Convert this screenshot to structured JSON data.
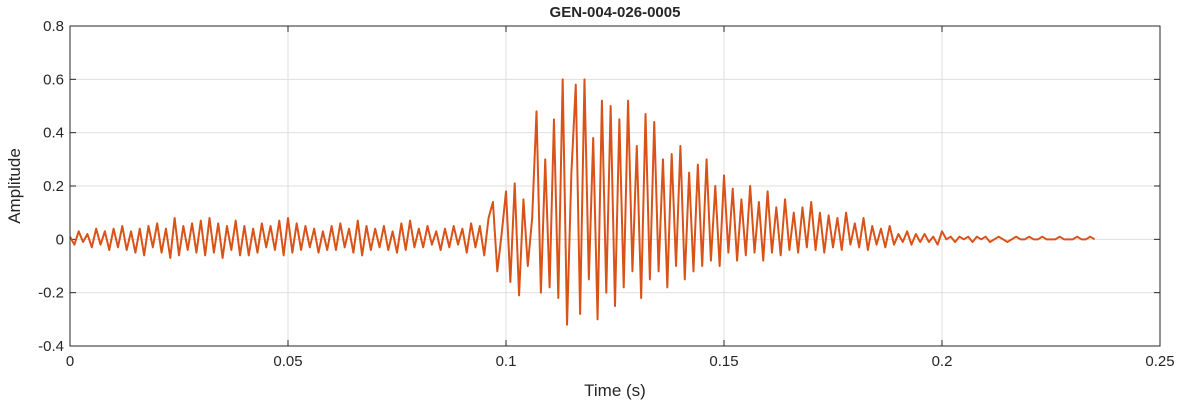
{
  "chart_data": {
    "type": "line",
    "title": "GEN-004-026-0005",
    "xlabel": "Time (s)",
    "ylabel": "Amplitude",
    "xlim": [
      0,
      0.25
    ],
    "xticks": [
      0,
      0.05,
      0.1,
      0.15,
      0.2,
      0.25
    ],
    "ylim": [
      -0.4,
      0.8
    ],
    "yticks": [
      -0.4,
      -0.2,
      0,
      0.2,
      0.4,
      0.6,
      0.8
    ],
    "grid": true,
    "x": [
      0,
      0.001,
      0.002,
      0.003,
      0.004,
      0.005,
      0.006,
      0.007,
      0.008,
      0.009,
      0.01,
      0.011,
      0.012,
      0.013,
      0.014,
      0.015,
      0.016,
      0.017,
      0.018,
      0.019,
      0.02,
      0.021,
      0.022,
      0.023,
      0.024,
      0.025,
      0.026,
      0.027,
      0.028,
      0.029,
      0.03,
      0.031,
      0.032,
      0.033,
      0.034,
      0.035,
      0.036,
      0.037,
      0.038,
      0.039,
      0.04,
      0.041,
      0.042,
      0.043,
      0.044,
      0.045,
      0.046,
      0.047,
      0.048,
      0.049,
      0.05,
      0.051,
      0.052,
      0.053,
      0.054,
      0.055,
      0.056,
      0.057,
      0.058,
      0.059,
      0.06,
      0.061,
      0.062,
      0.063,
      0.064,
      0.065,
      0.066,
      0.067,
      0.068,
      0.069,
      0.07,
      0.071,
      0.072,
      0.073,
      0.074,
      0.075,
      0.076,
      0.077,
      0.078,
      0.079,
      0.08,
      0.081,
      0.082,
      0.083,
      0.084,
      0.085,
      0.086,
      0.087,
      0.088,
      0.089,
      0.09,
      0.091,
      0.092,
      0.093,
      0.094,
      0.095,
      0.096,
      0.097,
      0.098,
      0.099,
      0.1,
      0.101,
      0.102,
      0.103,
      0.104,
      0.105,
      0.106,
      0.107,
      0.108,
      0.109,
      0.11,
      0.111,
      0.112,
      0.113,
      0.114,
      0.115,
      0.116,
      0.117,
      0.118,
      0.119,
      0.12,
      0.121,
      0.122,
      0.123,
      0.124,
      0.125,
      0.126,
      0.127,
      0.128,
      0.129,
      0.13,
      0.131,
      0.132,
      0.133,
      0.134,
      0.135,
      0.136,
      0.137,
      0.138,
      0.139,
      0.14,
      0.141,
      0.142,
      0.143,
      0.144,
      0.145,
      0.146,
      0.147,
      0.148,
      0.149,
      0.15,
      0.151,
      0.152,
      0.153,
      0.154,
      0.155,
      0.156,
      0.157,
      0.158,
      0.159,
      0.16,
      0.161,
      0.162,
      0.163,
      0.164,
      0.165,
      0.166,
      0.167,
      0.168,
      0.169,
      0.17,
      0.171,
      0.172,
      0.173,
      0.174,
      0.175,
      0.176,
      0.177,
      0.178,
      0.179,
      0.18,
      0.181,
      0.182,
      0.183,
      0.184,
      0.185,
      0.186,
      0.187,
      0.188,
      0.189,
      0.19,
      0.191,
      0.192,
      0.193,
      0.194,
      0.195,
      0.196,
      0.197,
      0.198,
      0.199,
      0.2,
      0.201,
      0.202,
      0.203,
      0.204,
      0.205,
      0.206,
      0.207,
      0.208,
      0.209,
      0.21,
      0.211,
      0.212,
      0.213,
      0.214,
      0.215,
      0.216,
      0.217,
      0.218,
      0.219,
      0.22,
      0.221,
      0.222,
      0.223,
      0.224,
      0.225,
      0.226,
      0.227,
      0.228,
      0.229,
      0.23,
      0.231,
      0.232,
      0.233,
      0.234,
      0.235
    ],
    "series": [
      {
        "color": "#d95319",
        "values": [
          0.01,
          -0.02,
          0.03,
          -0.01,
          0.02,
          -0.03,
          0.04,
          -0.02,
          0.03,
          -0.04,
          0.04,
          -0.03,
          0.05,
          -0.04,
          0.03,
          -0.05,
          0.04,
          -0.06,
          0.05,
          -0.03,
          0.06,
          -0.05,
          0.04,
          -0.07,
          0.08,
          -0.06,
          0.05,
          -0.04,
          0.06,
          -0.05,
          0.07,
          -0.06,
          0.08,
          -0.05,
          0.06,
          -0.07,
          0.05,
          -0.04,
          0.07,
          -0.06,
          0.05,
          -0.06,
          0.04,
          -0.05,
          0.06,
          -0.03,
          0.05,
          -0.04,
          0.07,
          -0.06,
          0.08,
          -0.05,
          0.06,
          -0.04,
          0.05,
          -0.03,
          0.04,
          -0.05,
          0.03,
          -0.04,
          0.05,
          -0.04,
          0.06,
          -0.03,
          0.04,
          -0.05,
          0.07,
          -0.06,
          0.05,
          -0.04,
          0.04,
          -0.03,
          0.05,
          -0.04,
          0.03,
          -0.05,
          0.06,
          -0.04,
          0.07,
          -0.03,
          0.04,
          -0.03,
          0.05,
          -0.02,
          0.03,
          -0.04,
          0.04,
          -0.03,
          0.05,
          -0.02,
          0.04,
          -0.05,
          0.06,
          -0.03,
          0.05,
          -0.06,
          0.08,
          0.14,
          -0.12,
          0.02,
          0.18,
          -0.16,
          0.21,
          -0.21,
          0.15,
          -0.1,
          0.08,
          0.48,
          -0.2,
          0.3,
          -0.18,
          0.45,
          -0.22,
          0.6,
          -0.32,
          0.25,
          0.58,
          -0.28,
          0.6,
          -0.15,
          0.38,
          -0.3,
          0.52,
          -0.2,
          0.5,
          -0.25,
          0.45,
          -0.18,
          0.52,
          -0.12,
          0.35,
          -0.22,
          0.47,
          -0.15,
          0.44,
          -0.12,
          0.3,
          -0.18,
          0.32,
          -0.1,
          0.35,
          -0.15,
          0.25,
          -0.12,
          0.28,
          -0.1,
          0.3,
          -0.08,
          0.2,
          -0.1,
          0.24,
          -0.05,
          0.19,
          -0.08,
          0.15,
          -0.06,
          0.2,
          -0.05,
          0.14,
          -0.08,
          0.18,
          -0.05,
          0.12,
          -0.06,
          0.15,
          -0.04,
          0.1,
          -0.05,
          0.12,
          -0.03,
          0.14,
          -0.04,
          0.1,
          -0.05,
          0.09,
          -0.03,
          0.08,
          -0.04,
          0.1,
          -0.02,
          0.06,
          -0.03,
          0.08,
          -0.04,
          0.05,
          -0.02,
          0.04,
          -0.03,
          0.05,
          -0.02,
          0.02,
          -0.01,
          0.03,
          -0.02,
          0.02,
          -0.01,
          0.02,
          -0.01,
          0.01,
          -0.02,
          0.03,
          0,
          0.01,
          -0.01,
          0.01,
          0,
          0.01,
          -0.01,
          0.01,
          0,
          0.01,
          -0.01,
          0,
          0.01,
          0,
          -0.01,
          0,
          0.01,
          0,
          0,
          0.01,
          0,
          0,
          0.01,
          0,
          0,
          0,
          0.01,
          0,
          0,
          0,
          0.01,
          0,
          0,
          0.01,
          0
        ]
      }
    ]
  }
}
